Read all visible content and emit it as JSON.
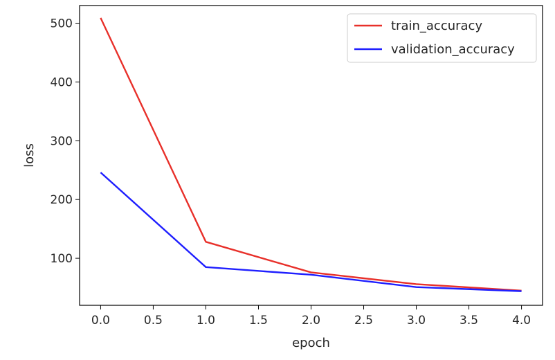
{
  "chart_data": {
    "type": "line",
    "title": "",
    "xlabel": "epoch",
    "ylabel": "loss",
    "x": [
      0,
      1,
      2,
      3,
      4
    ],
    "xlim": [
      -0.2,
      4.2
    ],
    "ylim": [
      20,
      530
    ],
    "xticks": [
      0.0,
      0.5,
      1.0,
      1.5,
      2.0,
      2.5,
      3.0,
      3.5,
      4.0
    ],
    "xtick_labels": [
      "0.0",
      "0.5",
      "1.0",
      "1.5",
      "2.0",
      "2.5",
      "3.0",
      "3.5",
      "4.0"
    ],
    "yticks": [
      100,
      200,
      300,
      400,
      500
    ],
    "ytick_labels": [
      "100",
      "200",
      "300",
      "400",
      "500"
    ],
    "grid": false,
    "legend_position": "top-right",
    "series": [
      {
        "name": "train_accuracy",
        "color": "#e8302a",
        "values": [
          509,
          128,
          76,
          56,
          45
        ]
      },
      {
        "name": "validation_accuracy",
        "color": "#1f1fff",
        "values": [
          246,
          85,
          72,
          51,
          44
        ]
      }
    ]
  }
}
